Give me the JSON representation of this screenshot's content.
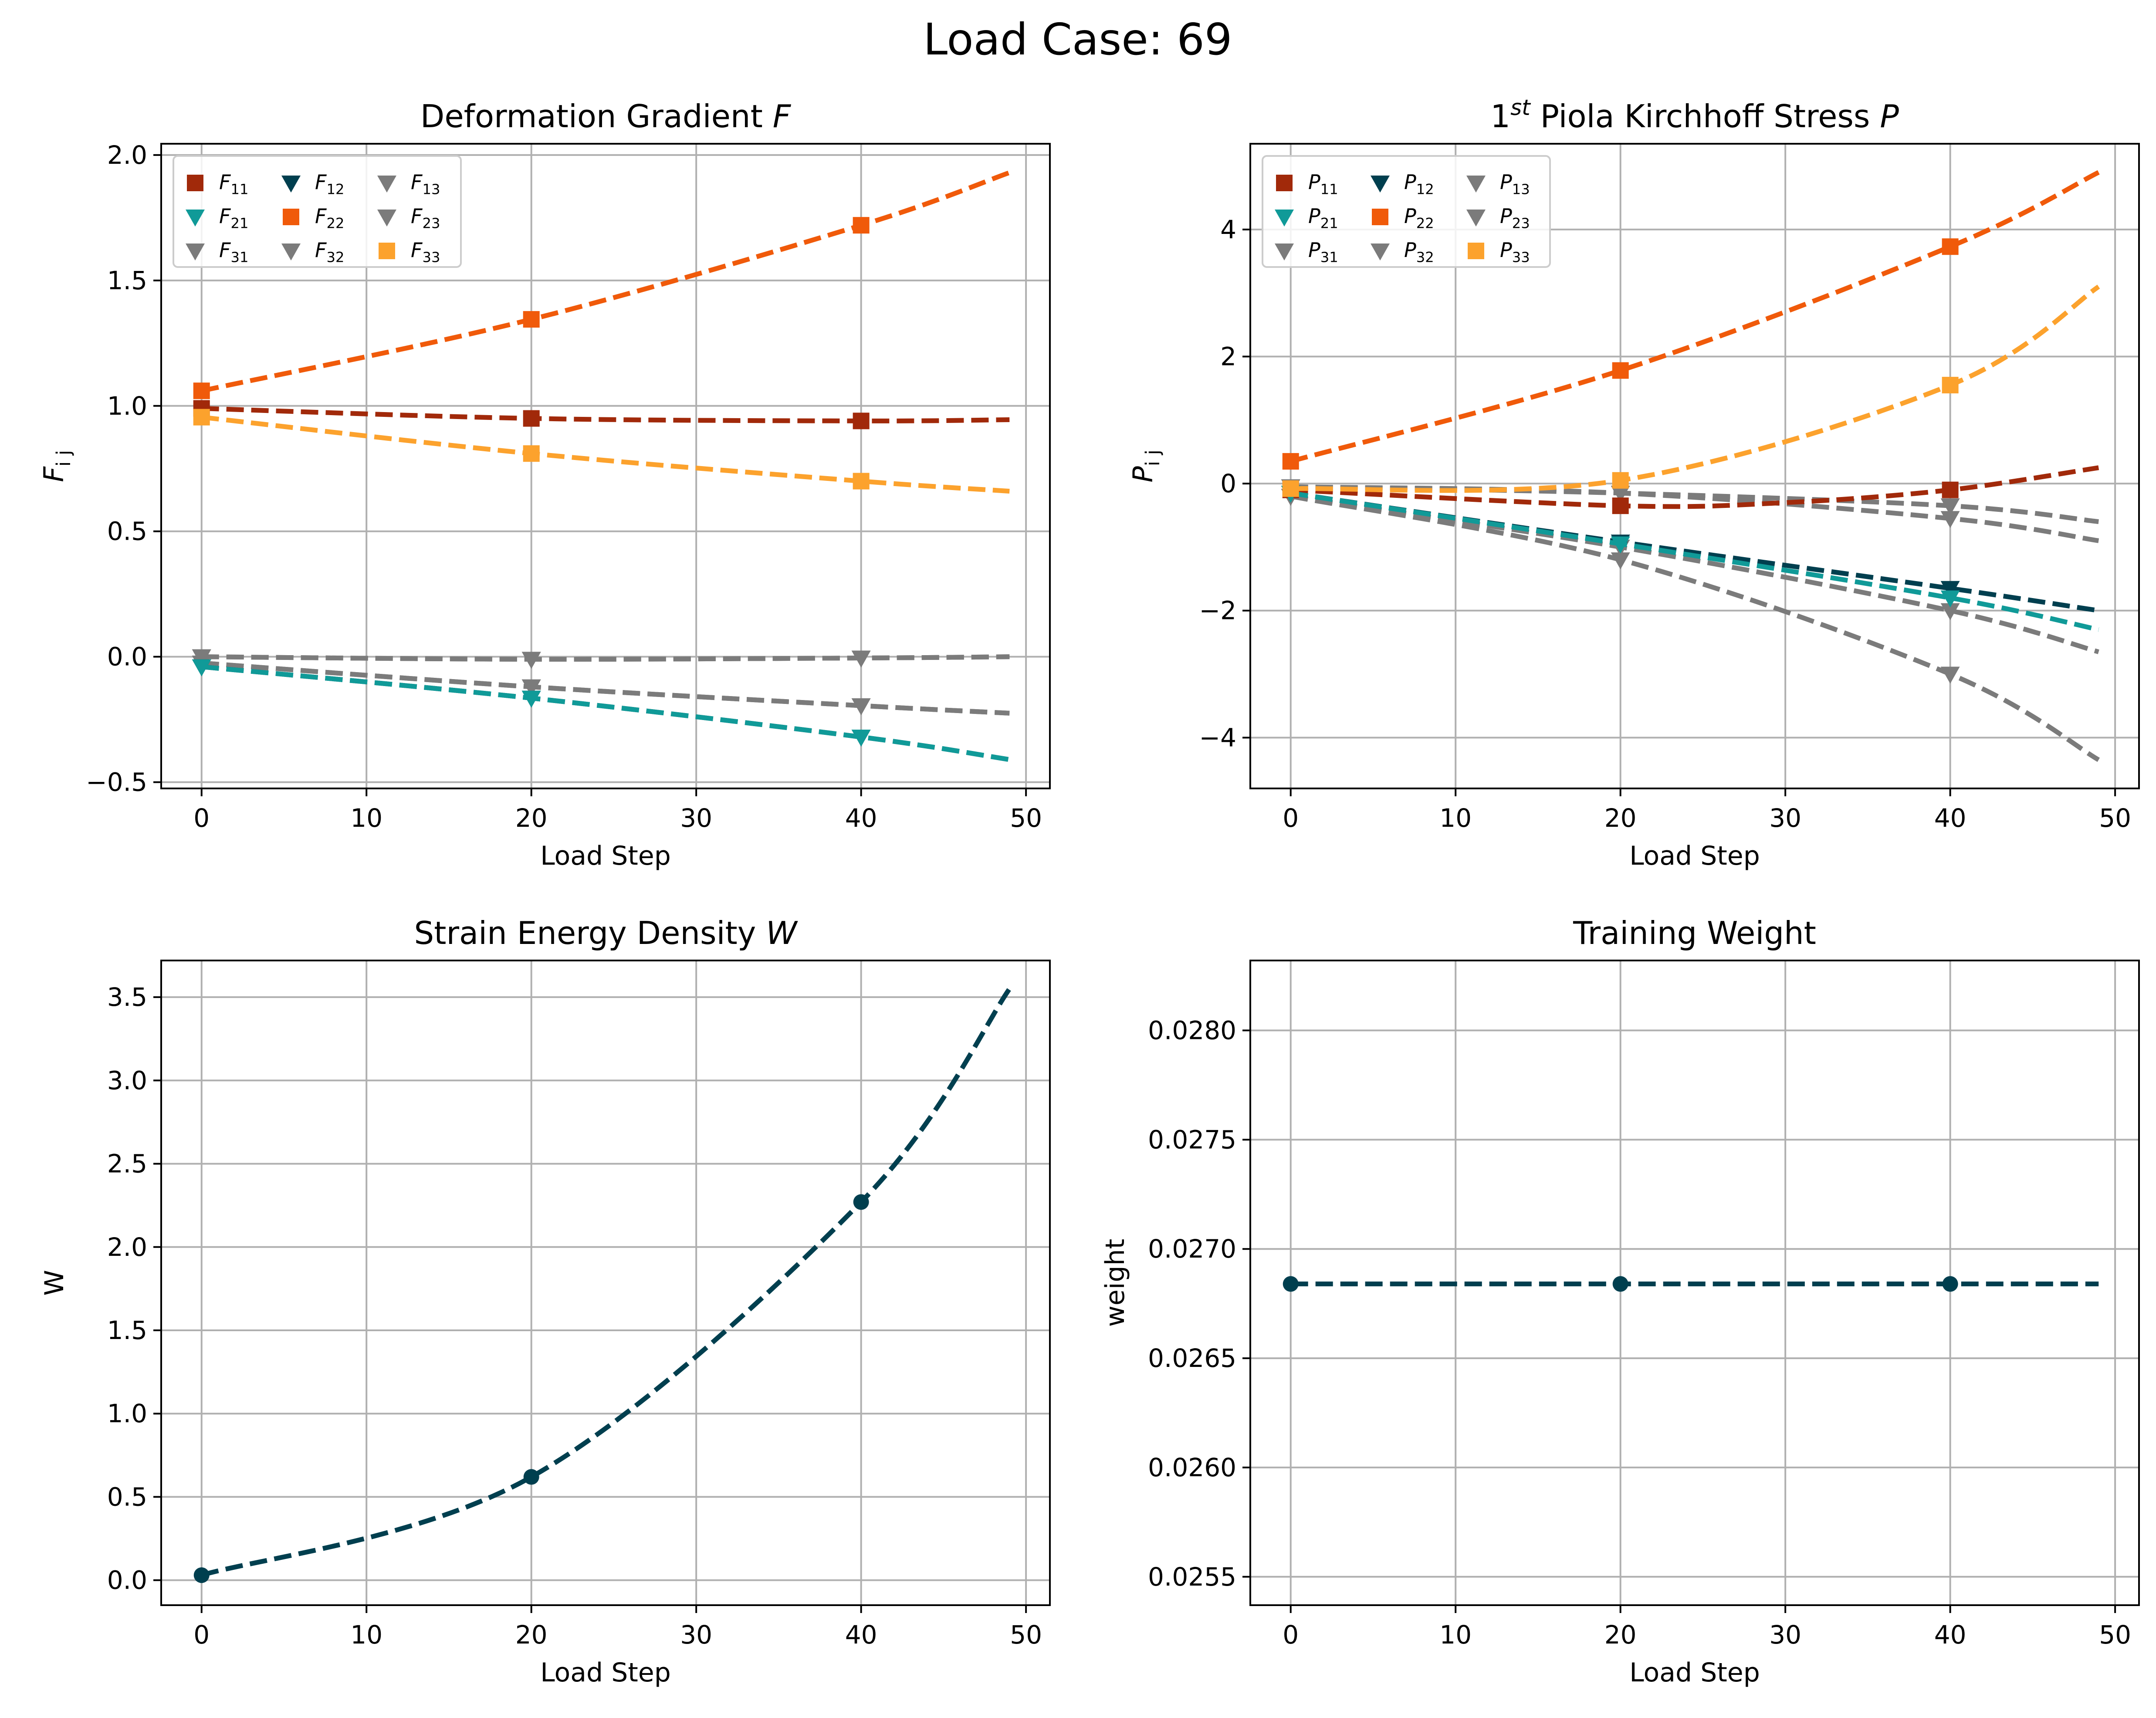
{
  "figure": {
    "suptitle": "Load Case: 69"
  },
  "colors": {
    "c11": "#A1290A",
    "c12": "#003F4F",
    "c21": "#109A98",
    "c22": "#F05A0A",
    "c33": "#FCA22D",
    "gray": "#7B7B7B",
    "grid": "#B0B0B0"
  },
  "chart_data": [
    {
      "id": "F",
      "type": "line",
      "title": "Deformation Gradient F",
      "title_parts": [
        "Deformation Gradient ",
        "F"
      ],
      "xlabel": "Load Step",
      "ylabel_base": "F",
      "ylabel_sub": "i j",
      "xlim": [
        -2.45,
        51.45
      ],
      "ylim": [
        -0.525,
        2.045
      ],
      "xticks": [
        0,
        10,
        20,
        30,
        40,
        50
      ],
      "yticks": [
        -0.5,
        0.0,
        0.5,
        1.0,
        1.5,
        2.0
      ],
      "ytick_labels": [
        "−0.5",
        "0.0",
        "0.5",
        "1.0",
        "1.5",
        "2.0"
      ],
      "grid": true,
      "legend": "upper-left",
      "legend_order": [
        "11",
        "21",
        "31",
        "12",
        "22",
        "32",
        "13",
        "23",
        "33"
      ],
      "series": [
        {
          "name": "11",
          "label_base": "F",
          "color_key": "c11",
          "marker": "square",
          "x": [
            0,
            20,
            40,
            49
          ],
          "y": [
            0.99,
            0.95,
            0.94,
            0.945
          ]
        },
        {
          "name": "12",
          "label_base": "F",
          "color_key": "c12",
          "marker": "tri",
          "x": [
            0,
            20,
            40,
            49
          ],
          "y": [
            -0.04,
            -0.165,
            -0.32,
            -0.41
          ]
        },
        {
          "name": "13",
          "label_base": "F",
          "color_key": "gray",
          "marker": "tri",
          "x": [
            0,
            20,
            40,
            49
          ],
          "y": [
            0.0,
            -0.01,
            -0.005,
            0.0
          ]
        },
        {
          "name": "21",
          "label_base": "F",
          "color_key": "c21",
          "marker": "tri",
          "x": [
            0,
            20,
            40,
            49
          ],
          "y": [
            -0.04,
            -0.165,
            -0.32,
            -0.41
          ]
        },
        {
          "name": "22",
          "label_base": "F",
          "color_key": "c22",
          "marker": "square",
          "x": [
            0,
            20,
            40,
            49
          ],
          "y": [
            1.06,
            1.345,
            1.72,
            1.93
          ]
        },
        {
          "name": "23",
          "label_base": "F",
          "color_key": "gray",
          "marker": "tri",
          "x": [
            0,
            20,
            40,
            49
          ],
          "y": [
            0.0,
            -0.01,
            -0.005,
            0.0
          ]
        },
        {
          "name": "31",
          "label_base": "F",
          "color_key": "gray",
          "marker": "tri",
          "x": [
            0,
            20,
            40,
            49
          ],
          "y": [
            -0.025,
            -0.12,
            -0.195,
            -0.225
          ]
        },
        {
          "name": "32",
          "label_base": "F",
          "color_key": "gray",
          "marker": "tri",
          "x": [
            0,
            20,
            40,
            49
          ],
          "y": [
            -0.025,
            -0.12,
            -0.195,
            -0.225
          ]
        },
        {
          "name": "33",
          "label_base": "F",
          "color_key": "c33",
          "marker": "square",
          "x": [
            0,
            20,
            40,
            49
          ],
          "y": [
            0.955,
            0.81,
            0.7,
            0.66
          ]
        }
      ]
    },
    {
      "id": "P",
      "type": "line",
      "title": "1st Piola Kirchhoff Stress P",
      "title_parts": [
        "1",
        "st",
        " Piola Kirchhoff Stress ",
        "P"
      ],
      "xlabel": "Load Step",
      "ylabel_base": "P",
      "ylabel_sub": "i j",
      "xlim": [
        -2.45,
        51.45
      ],
      "ylim": [
        -4.8,
        5.35
      ],
      "xticks": [
        0,
        10,
        20,
        30,
        40,
        50
      ],
      "yticks": [
        -4,
        -2,
        0,
        2,
        4
      ],
      "ytick_labels": [
        "−4",
        "−2",
        "0",
        "2",
        "4"
      ],
      "grid": true,
      "legend": "upper-left",
      "legend_order": [
        "11",
        "21",
        "31",
        "12",
        "22",
        "32",
        "13",
        "23",
        "33"
      ],
      "series": [
        {
          "name": "11",
          "label_base": "P",
          "color_key": "c11",
          "marker": "square",
          "x": [
            0,
            20,
            30,
            40,
            49
          ],
          "y": [
            -0.1,
            -0.35,
            -0.3,
            -0.1,
            0.25
          ]
        },
        {
          "name": "12",
          "label_base": "P",
          "color_key": "c12",
          "marker": "tri",
          "x": [
            0,
            20,
            40,
            49
          ],
          "y": [
            -0.15,
            -0.92,
            -1.65,
            -2.0
          ]
        },
        {
          "name": "13",
          "label_base": "P",
          "color_key": "gray",
          "marker": "tri",
          "x": [
            0,
            20,
            40,
            49
          ],
          "y": [
            -0.05,
            -0.15,
            -0.35,
            -0.6
          ]
        },
        {
          "name": "21",
          "label_base": "P",
          "color_key": "c21",
          "marker": "tri",
          "x": [
            0,
            20,
            40,
            49
          ],
          "y": [
            -0.15,
            -0.95,
            -1.8,
            -2.3
          ]
        },
        {
          "name": "22",
          "label_base": "P",
          "color_key": "c22",
          "marker": "square",
          "x": [
            0,
            20,
            40,
            49
          ],
          "y": [
            0.35,
            1.78,
            3.73,
            4.9
          ]
        },
        {
          "name": "23",
          "label_base": "P",
          "color_key": "gray",
          "marker": "tri",
          "x": [
            0,
            20,
            40,
            49
          ],
          "y": [
            -0.05,
            -0.15,
            -0.55,
            -0.9
          ]
        },
        {
          "name": "31",
          "label_base": "P",
          "color_key": "gray",
          "marker": "tri",
          "x": [
            0,
            20,
            40,
            49
          ],
          "y": [
            -0.2,
            -1.0,
            -2.0,
            -2.65
          ]
        },
        {
          "name": "32",
          "label_base": "P",
          "color_key": "gray",
          "marker": "tri",
          "x": [
            0,
            20,
            40,
            49
          ],
          "y": [
            -0.2,
            -1.2,
            -3.0,
            -4.35
          ]
        },
        {
          "name": "33",
          "label_base": "P",
          "color_key": "c33",
          "marker": "square",
          "x": [
            0,
            20,
            40,
            49
          ],
          "y": [
            -0.08,
            0.05,
            1.55,
            3.1
          ]
        }
      ]
    },
    {
      "id": "W",
      "type": "line",
      "title": "Strain Energy Density W",
      "title_parts": [
        "Strain Energy Density ",
        "W"
      ],
      "xlabel": "Load Step",
      "ylabel": "W",
      "xlim": [
        -2.45,
        51.45
      ],
      "ylim": [
        -0.15,
        3.72
      ],
      "xticks": [
        0,
        10,
        20,
        30,
        40,
        50
      ],
      "yticks": [
        0.0,
        0.5,
        1.0,
        1.5,
        2.0,
        2.5,
        3.0,
        3.5
      ],
      "ytick_labels": [
        "0.0",
        "0.5",
        "1.0",
        "1.5",
        "2.0",
        "2.5",
        "3.0",
        "3.5"
      ],
      "grid": true,
      "series": [
        {
          "color_key": "c12",
          "marker": "circle",
          "x": [
            0,
            20,
            40,
            49
          ],
          "y": [
            0.03,
            0.62,
            2.27,
            3.55
          ]
        }
      ]
    },
    {
      "id": "weight",
      "type": "line",
      "title": "Training Weight",
      "title_parts": [
        "Training Weight"
      ],
      "xlabel": "Load Step",
      "ylabel": "weight",
      "xlim": [
        -2.45,
        51.45
      ],
      "ylim": [
        0.02537,
        0.02832
      ],
      "xticks": [
        0,
        10,
        20,
        30,
        40,
        50
      ],
      "yticks": [
        0.0255,
        0.026,
        0.0265,
        0.027,
        0.0275,
        0.028
      ],
      "ytick_labels": [
        "0.0255",
        "0.0260",
        "0.0265",
        "0.0270",
        "0.0275",
        "0.0280"
      ],
      "grid": true,
      "series": [
        {
          "color_key": "c12",
          "marker": "circle",
          "x": [
            0,
            20,
            40,
            49
          ],
          "y": [
            0.02684,
            0.02684,
            0.02684,
            0.02684
          ]
        }
      ]
    }
  ]
}
